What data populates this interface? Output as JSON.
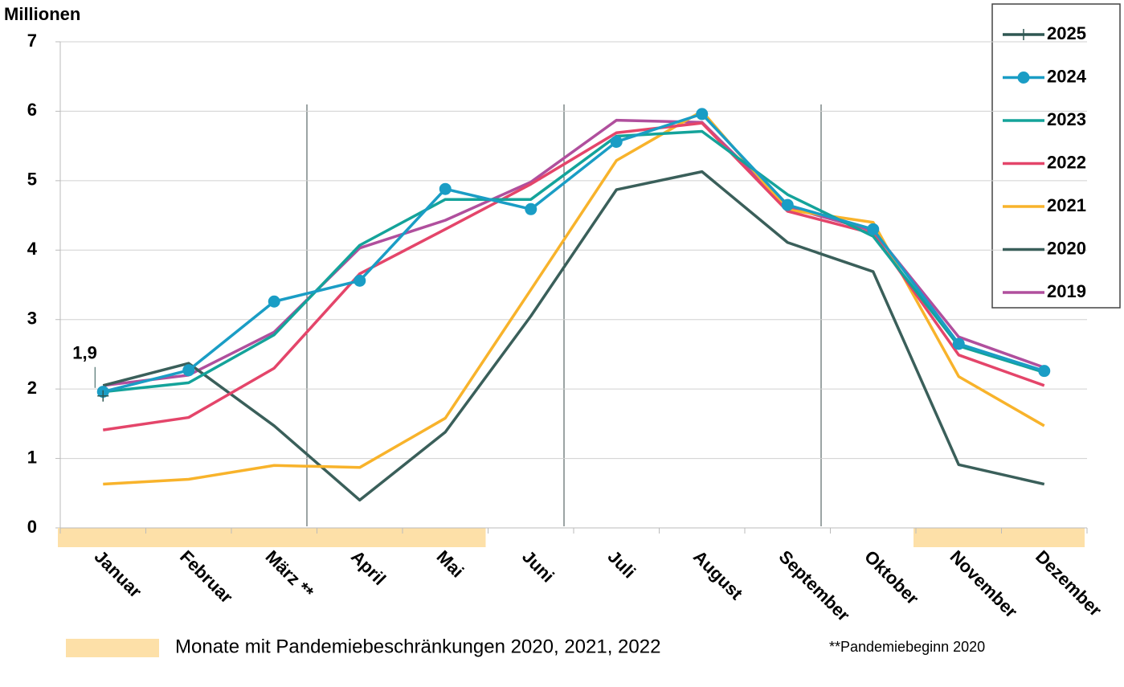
{
  "chart_data": {
    "type": "line",
    "y_axis_label": "Millionen",
    "categories": [
      "Januar",
      "Februar",
      "März **",
      "April",
      "Mai",
      "Juni",
      "Juli",
      "August",
      "September",
      "Oktober",
      "November",
      "Dezember"
    ],
    "ylim": [
      0,
      7
    ],
    "yticks": [
      0,
      1,
      2,
      3,
      4,
      5,
      6,
      7
    ],
    "grid": true,
    "shaded_ranges": [
      [
        0,
        4
      ],
      [
        10,
        11
      ]
    ],
    "shade_color": "#fde0a8",
    "shade_legend": "Monate mit Pandemiebeschränkungen 2020, 2021, 2022",
    "footnote": "**Pandemiebeginn 2020",
    "legend": "top-right",
    "series": [
      {
        "name": "2025",
        "color": "#2f5752",
        "marker": "plus",
        "values": [
          1.9,
          null,
          null,
          null,
          null,
          null,
          null,
          null,
          null,
          null,
          null,
          null
        ],
        "value_labels": [
          "1,9",
          null,
          null,
          null,
          null,
          null,
          null,
          null,
          null,
          null,
          null,
          null
        ]
      },
      {
        "name": "2024",
        "color": "#1a9dc5",
        "marker": "circle",
        "values": [
          1.96,
          2.27,
          3.26,
          3.56,
          4.88,
          4.59,
          5.56,
          5.96,
          4.65,
          4.3,
          2.65,
          2.26
        ]
      },
      {
        "name": "2023",
        "color": "#14a39a",
        "values": [
          1.96,
          2.09,
          2.78,
          4.07,
          4.73,
          4.73,
          5.64,
          5.71,
          4.8,
          4.2,
          2.62,
          2.24
        ]
      },
      {
        "name": "2022",
        "color": "#e4456a",
        "values": [
          1.41,
          1.59,
          2.3,
          3.66,
          4.3,
          4.95,
          5.69,
          5.83,
          4.56,
          4.24,
          2.49,
          2.05
        ]
      },
      {
        "name": "2021",
        "color": "#f8b32b",
        "values": [
          0.63,
          0.7,
          0.9,
          0.87,
          1.58,
          3.43,
          5.29,
          6.0,
          4.58,
          4.4,
          2.18,
          1.47
        ]
      },
      {
        "name": "2020",
        "color": "#3a5f5a",
        "values": [
          2.05,
          2.37,
          1.47,
          0.4,
          1.38,
          3.05,
          4.87,
          5.13,
          4.11,
          3.69,
          0.91,
          0.63
        ]
      },
      {
        "name": "2019",
        "color": "#b04f9d",
        "values": [
          2.05,
          2.2,
          2.82,
          4.03,
          4.43,
          4.98,
          5.87,
          5.84,
          4.62,
          4.28,
          2.75,
          2.31
        ]
      }
    ]
  }
}
